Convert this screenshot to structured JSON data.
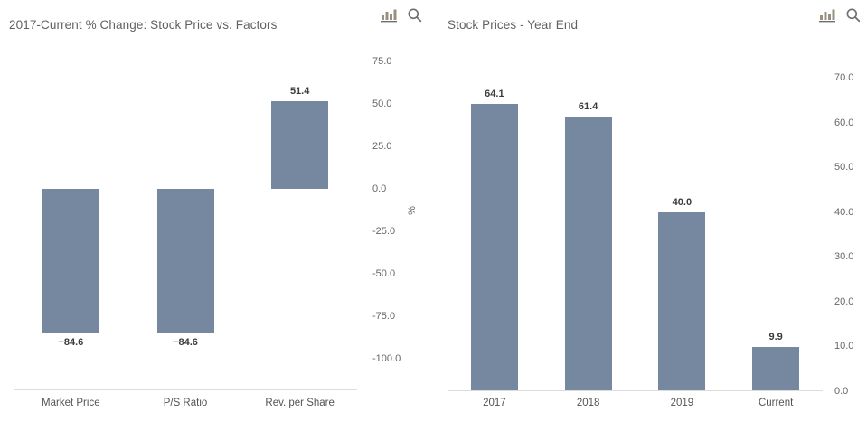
{
  "page": {
    "background": "#ffffff"
  },
  "colors": {
    "bar_fill": "#7687a0",
    "axis_line": "#dcdcdc",
    "title_text": "#616161",
    "tick_text": "#666666",
    "category_text": "#545454",
    "data_label_text": "#3c3c3c",
    "icon_chart": "#9a9081",
    "icon_chart_baseline": "#6f6f6f",
    "icon_magnifier": "#6e6e6e"
  },
  "toolbar_icons": [
    {
      "name": "column-chart-icon"
    },
    {
      "name": "magnifier-icon"
    }
  ],
  "chart_data": [
    {
      "type": "bar",
      "title": "2017-Current % Change: Stock Price vs. Factors",
      "categories": [
        "Market Price",
        "P/S Ratio",
        "Rev. per Share"
      ],
      "values": [
        -84.6,
        -84.6,
        51.4
      ],
      "data_labels": [
        "−84.6",
        "−84.6",
        "51.4"
      ],
      "xlabel": "",
      "ylabel": "%",
      "ylim": [
        -100,
        75
      ],
      "yticks": [
        "75.0",
        "50.0",
        "25.0",
        "0.0",
        "-25.0",
        "-50.0",
        "-75.0",
        "-100.0"
      ],
      "grid": false,
      "legend": false,
      "y_axis_side": "right"
    },
    {
      "type": "bar",
      "title": "Stock Prices - Year End",
      "categories": [
        "2017",
        "2018",
        "2019",
        "Current"
      ],
      "values": [
        64.1,
        61.4,
        40.0,
        9.9
      ],
      "data_labels": [
        "64.1",
        "61.4",
        "40.0",
        "9.9"
      ],
      "xlabel": "",
      "ylabel": "",
      "ylim": [
        0,
        70
      ],
      "yticks": [
        "70.0",
        "60.0",
        "50.0",
        "40.0",
        "30.0",
        "20.0",
        "10.0",
        "0.0"
      ],
      "grid": false,
      "legend": false,
      "y_axis_side": "right"
    }
  ]
}
